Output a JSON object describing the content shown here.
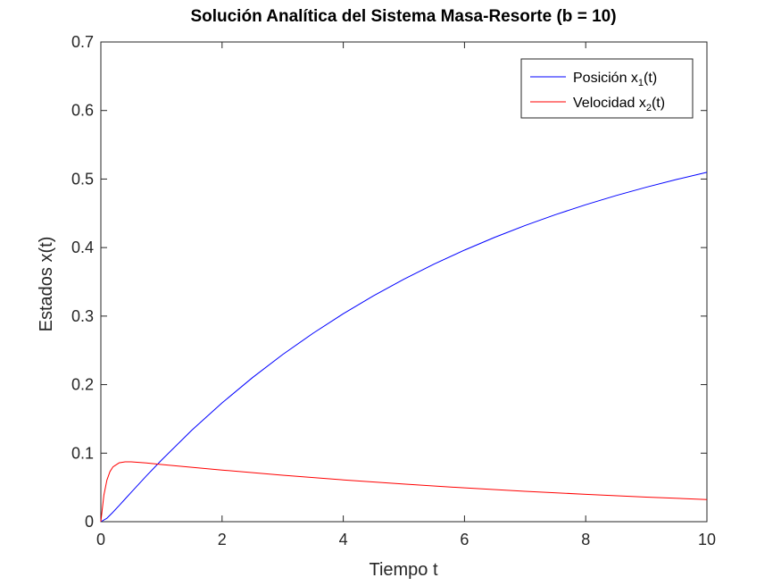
{
  "chart_data": {
    "type": "line",
    "title": "Solución Analítica del Sistema Masa-Resorte (b = 10)",
    "xlabel": "Tiempo t",
    "ylabel": "Estados x(t)",
    "xlim": [
      0,
      10
    ],
    "ylim": [
      0,
      0.7
    ],
    "xticks": [
      0,
      2,
      4,
      6,
      8,
      10
    ],
    "yticks": [
      0,
      0.1,
      0.2,
      0.3,
      0.4,
      0.5,
      0.6,
      0.7
    ],
    "grid": false,
    "legend_position": "top-right",
    "series": [
      {
        "name": "Posición x",
        "subscript": "1",
        "suffix": "(t)",
        "color": "#0000ff",
        "x": [
          0,
          0.1,
          0.2,
          0.3,
          0.4,
          0.5,
          0.75,
          1,
          1.5,
          2,
          2.5,
          3,
          3.5,
          4,
          4.5,
          5,
          5.5,
          6,
          6.5,
          7,
          7.5,
          8,
          8.5,
          9,
          9.5,
          10
        ],
        "y": [
          0,
          0.005,
          0.0139,
          0.0234,
          0.0331,
          0.0428,
          0.0667,
          0.0898,
          0.1334,
          0.1734,
          0.2101,
          0.2439,
          0.2749,
          0.3035,
          0.3297,
          0.3538,
          0.376,
          0.3963,
          0.415,
          0.4322,
          0.448,
          0.4625,
          0.4759,
          0.4881,
          0.4994,
          0.5098
        ]
      },
      {
        "name": "Velocidad x",
        "subscript": "2",
        "suffix": "(t)",
        "color": "#ff0000",
        "x": [
          0,
          0.05,
          0.1,
          0.15,
          0.2,
          0.3,
          0.4,
          0.5,
          0.75,
          1,
          1.5,
          2,
          3,
          4,
          5,
          6,
          7,
          8,
          9,
          10
        ],
        "y": [
          0,
          0.0388,
          0.0607,
          0.0731,
          0.08,
          0.0858,
          0.0873,
          0.0873,
          0.0857,
          0.0835,
          0.0794,
          0.0753,
          0.0677,
          0.061,
          0.0549,
          0.0493,
          0.0444,
          0.0399,
          0.0359,
          0.0323
        ]
      }
    ]
  }
}
